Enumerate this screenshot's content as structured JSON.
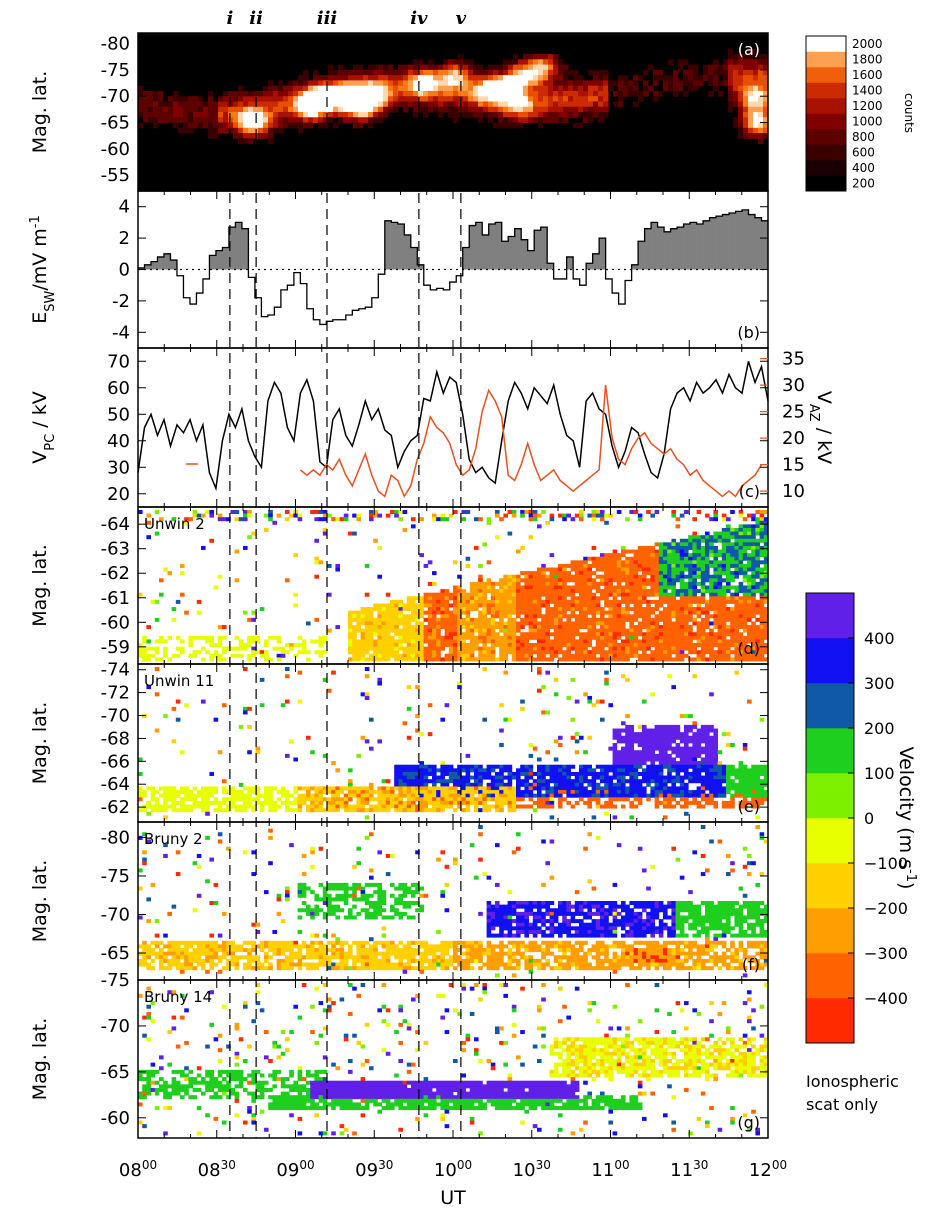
{
  "chart_data": {
    "type": "multi-panel",
    "events": [
      {
        "label": "i",
        "time": "08:35"
      },
      {
        "label": "ii",
        "time": "08:45"
      },
      {
        "label": "iii",
        "time": "09:12"
      },
      {
        "label": "iv",
        "time": "09:47"
      },
      {
        "label": "v",
        "time": "10:03"
      }
    ],
    "x_axis": {
      "label": "UT",
      "ticks": [
        {
          "h": "08",
          "m": "00"
        },
        {
          "h": "08",
          "m": "30"
        },
        {
          "h": "09",
          "m": "00"
        },
        {
          "h": "09",
          "m": "30"
        },
        {
          "h": "10",
          "m": "00"
        },
        {
          "h": "10",
          "m": "30"
        },
        {
          "h": "11",
          "m": "00"
        },
        {
          "h": "11",
          "m": "30"
        },
        {
          "h": "12",
          "m": "00"
        }
      ]
    },
    "panels": [
      {
        "id": "a",
        "type": "heatmap",
        "label": "(a)",
        "ylabel": "Mag. lat.",
        "yticks": [
          "-80",
          "-75",
          "-70",
          "-65",
          "-60",
          "-55"
        ],
        "ylim": [
          -52,
          -82
        ],
        "colorbar": {
          "label": "counts",
          "ticks": [
            "2000",
            "1800",
            "1600",
            "1400",
            "1200",
            "1000",
            "800",
            "600",
            "400",
            "200"
          ]
        }
      },
      {
        "id": "b",
        "type": "step",
        "label": "(b)",
        "ylabel": "E",
        "ylabel_sub": "SW",
        "ylabel_units": "/mV m",
        "ylabel_sup": "-1",
        "yticks": [
          "4",
          "2",
          "0",
          "-2",
          "-4"
        ],
        "ylim": [
          -5,
          5
        ],
        "esw_values": [
          0.1,
          0.3,
          0.5,
          0.8,
          1.0,
          0.6,
          -0.4,
          -1.8,
          -2.2,
          -1.5,
          -0.6,
          0.9,
          1.2,
          1.4,
          2.7,
          3.0,
          2.6,
          -0.5,
          -1.8,
          -3.0,
          -2.9,
          -2.4,
          -1.3,
          -1.0,
          -0.2,
          -0.9,
          -2.5,
          -3.2,
          -3.5,
          -3.3,
          -3.2,
          -3.2,
          -2.9,
          -2.6,
          -2.5,
          -2.4,
          -1.8,
          -0.3,
          3.1,
          3.0,
          2.9,
          2.2,
          1.4,
          0.3,
          -1.0,
          -1.3,
          -1.2,
          -1.3,
          -0.8,
          -0.4,
          1.4,
          2.8,
          3.0,
          2.2,
          2.9,
          3.0,
          1.8,
          2.1,
          2.6,
          1.9,
          1.2,
          2.5,
          2.7,
          0.4,
          -0.6,
          -0.6,
          0.8,
          -0.6,
          -1.0,
          0.4,
          1.0,
          2.0,
          -0.6,
          -1.5,
          -2.2,
          -0.7,
          0.3,
          1.8,
          2.6,
          3.0,
          2.7,
          2.4,
          2.6,
          2.7,
          2.9,
          3.0,
          2.9,
          3.1,
          3.3,
          3.4,
          3.5,
          3.6,
          3.7,
          3.8,
          3.5,
          3.3,
          3.1
        ]
      },
      {
        "id": "c",
        "type": "line",
        "label": "(c)",
        "ylabel": "V",
        "ylabel_sub": "PC",
        "ylabel_units": " / kV",
        "yticks": [
          "70",
          "60",
          "50",
          "40",
          "30",
          "20"
        ],
        "ylim": [
          15,
          75
        ],
        "y2label": "V",
        "y2label_sub": "AZ",
        "y2label_units": " / kV",
        "y2ticks": [
          "35",
          "30",
          "25",
          "20",
          "15",
          "10"
        ],
        "y2lim": [
          7,
          37
        ],
        "color_vpc": "#000000",
        "color_vaz": "#e8501e",
        "vpc_values": [
          28,
          45,
          50,
          42,
          48,
          38,
          46,
          43,
          48,
          40,
          46,
          28,
          22,
          40,
          50,
          45,
          52,
          40,
          34,
          30,
          55,
          62,
          58,
          45,
          40,
          58,
          63,
          55,
          32,
          30,
          48,
          52,
          42,
          38,
          46,
          55,
          48,
          52,
          44,
          42,
          30,
          36,
          40,
          42,
          56,
          55,
          66,
          58,
          64,
          62,
          50,
          33,
          28,
          30,
          26,
          24,
          40,
          55,
          62,
          58,
          52,
          60,
          57,
          54,
          61,
          50,
          42,
          40,
          30,
          55,
          58,
          52,
          50,
          38,
          30,
          36,
          45,
          43,
          35,
          28,
          26,
          35,
          52,
          58,
          60,
          55,
          62,
          58,
          60,
          63,
          58,
          65,
          60,
          58,
          70,
          62,
          68,
          55
        ],
        "vaz_points": [
          [
            25,
            14
          ],
          [
            26,
            13
          ],
          [
            27,
            14
          ],
          [
            28,
            13
          ],
          [
            29,
            15
          ],
          [
            30,
            14
          ],
          [
            31,
            16
          ],
          [
            32,
            13
          ],
          [
            33,
            11
          ],
          [
            34,
            14
          ],
          [
            35,
            17
          ],
          [
            36,
            13
          ],
          [
            37,
            10
          ],
          [
            38,
            9
          ],
          [
            39,
            13
          ],
          [
            40,
            12
          ],
          [
            41,
            9
          ],
          [
            42,
            11
          ],
          [
            43,
            16
          ],
          [
            44,
            19
          ],
          [
            45,
            24
          ],
          [
            46,
            22
          ],
          [
            47,
            21
          ],
          [
            48,
            19
          ],
          [
            49,
            15
          ],
          [
            50,
            13
          ],
          [
            51,
            14
          ],
          [
            52,
            18
          ],
          [
            53,
            25
          ],
          [
            54,
            29
          ],
          [
            55,
            27
          ],
          [
            56,
            24
          ],
          [
            57,
            13
          ],
          [
            58,
            12
          ],
          [
            59,
            15
          ],
          [
            60,
            19
          ],
          [
            61,
            15
          ],
          [
            62,
            12
          ],
          [
            63,
            13
          ],
          [
            64,
            14
          ],
          [
            65,
            12
          ],
          [
            66,
            11
          ],
          [
            67,
            10
          ],
          [
            68,
            11
          ],
          [
            69,
            12
          ],
          [
            70,
            13
          ],
          [
            71,
            14
          ],
          [
            72,
            30
          ],
          [
            73,
            20
          ],
          [
            74,
            16
          ],
          [
            75,
            15
          ],
          [
            76,
            18
          ],
          [
            77,
            20
          ],
          [
            78,
            21
          ],
          [
            79,
            19
          ],
          [
            80,
            18
          ],
          [
            81,
            17
          ],
          [
            82,
            18
          ],
          [
            83,
            16
          ],
          [
            84,
            15
          ],
          [
            85,
            13
          ],
          [
            86,
            14
          ],
          [
            87,
            12
          ],
          [
            88,
            11
          ],
          [
            89,
            10
          ],
          [
            90,
            9
          ],
          [
            91,
            10
          ],
          [
            92,
            9
          ],
          [
            93,
            11
          ],
          [
            94,
            12
          ],
          [
            95,
            13
          ],
          [
            96,
            15
          ]
        ]
      },
      {
        "id": "d",
        "type": "heatmap",
        "label": "(d)",
        "radar": "Unwin 2",
        "ylabel": "Mag. lat.",
        "yticks": [
          "-64",
          "-63",
          "-62",
          "-61",
          "-60",
          "-59"
        ],
        "ylim": [
          -58.3,
          -64.7
        ]
      },
      {
        "id": "e",
        "type": "heatmap",
        "label": "(e)",
        "radar": "Unwin 11",
        "ylabel": "Mag. lat.",
        "yticks": [
          "-74",
          "-72",
          "-70",
          "-68",
          "-66",
          "-64",
          "-62"
        ],
        "ylim": [
          -60.7,
          -74.5
        ]
      },
      {
        "id": "f",
        "type": "heatmap",
        "label": "(f)",
        "radar": "Bruny 2",
        "ylabel": "Mag. lat.",
        "yticks": [
          "-80",
          "-75",
          "-70",
          "-65"
        ],
        "ylim": [
          -61.5,
          -82
        ]
      },
      {
        "id": "g",
        "type": "heatmap",
        "label": "(g)",
        "radar": "Bruny 14",
        "ylabel": "Mag. lat.",
        "yticks": [
          "-75",
          "-70",
          "-65",
          "-60"
        ],
        "ylim": [
          -57.8,
          -75
        ]
      }
    ],
    "velocity_colorbar": {
      "label": "Velocity (m s",
      "label_sup": "-1",
      "label_end": ")",
      "ticks": [
        "400",
        "300",
        "200",
        "100",
        "0",
        "−100",
        "−200",
        "−300",
        "−400"
      ],
      "note_line1": "Ionospheric",
      "note_line2": "scat only",
      "colors": [
        "#ff2a00",
        "#ff6200",
        "#ff9e00",
        "#ffd000",
        "#e8ff00",
        "#7df000",
        "#1ecf1e",
        "#1058a8",
        "#1010f0",
        "#6020e8"
      ]
    }
  }
}
